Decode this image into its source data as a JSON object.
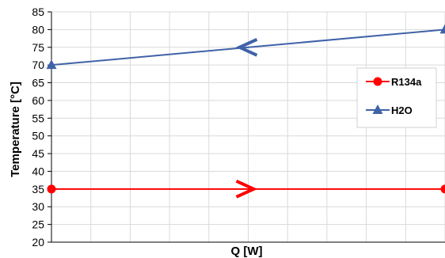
{
  "chart_data": {
    "type": "line",
    "title": "",
    "xlabel": "Q [W]",
    "ylabel": "Temperature [°C]",
    "ylim": [
      20,
      85
    ],
    "y_ticks": [
      20,
      25,
      30,
      35,
      40,
      45,
      50,
      55,
      60,
      65,
      70,
      75,
      80,
      85
    ],
    "x_tick_labels_shown": false,
    "grid": true,
    "legend": "right",
    "series": [
      {
        "name": "R134a",
        "color": "#ff0000",
        "marker": "circle",
        "x": [
          0,
          1
        ],
        "y": [
          35,
          35
        ],
        "direction_arrow": "right"
      },
      {
        "name": "H2O",
        "color": "#3f62a8",
        "marker": "triangle",
        "x": [
          0,
          1
        ],
        "y": [
          70,
          80
        ],
        "direction_arrow": "left"
      }
    ]
  }
}
